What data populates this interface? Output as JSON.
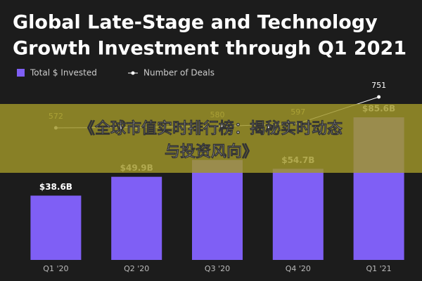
{
  "chart_data": {
    "type": "bar-line",
    "title_lines": [
      "Global Late-Stage and Technology",
      "Growth Investment through Q1 2021"
    ],
    "categories": [
      "Q1 '20",
      "Q2 '20",
      "Q3 '20",
      "Q4 '20",
      "Q1 '21"
    ],
    "series": [
      {
        "name": "Total $ Invested",
        "color": "#7f5ff5",
        "kind": "bar",
        "values": [
          38.6,
          49.9,
          60,
          54.7,
          85.6
        ],
        "value_labels": [
          "$38.6B",
          "$49.9B",
          null,
          "$54.7B",
          "$85.6B"
        ]
      },
      {
        "name": "Number of Deals",
        "color": "#ffffff",
        "kind": "line",
        "values": [
          572,
          575,
          580,
          597,
          751
        ],
        "value_labels": [
          572,
          null,
          580,
          597,
          751
        ]
      }
    ]
  },
  "banner": {
    "lines": [
      "《全球市值实时排行榜：揭秘实时动态",
      "与投资风向》"
    ]
  }
}
